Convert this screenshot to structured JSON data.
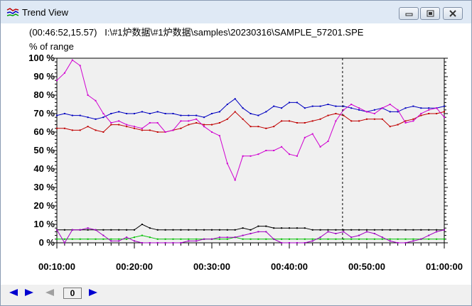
{
  "window": {
    "title": "Trend View",
    "title_icon": "trend-chart-icon",
    "controls": [
      "minimize-icon",
      "restore-icon",
      "close-icon"
    ]
  },
  "info_line": "(00:46:52,15.57)   I:\\#1炉数据\\#1炉数据\\samples\\20230316\\SAMPLE_57201.SPE",
  "chart_data": {
    "type": "line",
    "ylabel": "% of range",
    "ylim": [
      0,
      100
    ],
    "y_ticks": [
      "100 %",
      "90 %",
      "80 %",
      "70 %",
      "60 %",
      "50 %",
      "40 %",
      "30 %",
      "20 %",
      "10 %",
      "0 %"
    ],
    "x_ticks": [
      "00:10:00",
      "00:20:00",
      "00:30:00",
      "00:40:00",
      "00:50:00",
      "01:00:00"
    ],
    "x_minutes_range": [
      10,
      60
    ],
    "cursor_minute": 46.87,
    "grid": false,
    "background": "#f0f0f0",
    "series": [
      {
        "color": "#0000c0",
        "x": [
          10,
          11,
          12,
          13,
          14,
          15,
          16,
          17,
          18,
          19,
          20,
          21,
          22,
          23,
          24,
          25,
          26,
          27,
          28,
          29,
          30,
          31,
          32,
          33,
          34,
          35,
          36,
          37,
          38,
          39,
          40,
          41,
          42,
          43,
          44,
          45,
          46,
          47,
          48,
          49,
          50,
          51,
          52,
          53,
          54,
          55,
          56,
          57,
          58,
          59,
          60
        ],
        "y": [
          69,
          70,
          69,
          69,
          68,
          67,
          68,
          70,
          71,
          70,
          70,
          71,
          70,
          71,
          70,
          70,
          69,
          69,
          69,
          68,
          70,
          71,
          75,
          78,
          73,
          70,
          69,
          71,
          74,
          73,
          76,
          76,
          73,
          74,
          74,
          75,
          74,
          74,
          73,
          72,
          71,
          72,
          73,
          71,
          71,
          73,
          74,
          73,
          73,
          73,
          74
        ]
      },
      {
        "color": "#c00000",
        "x": [
          10,
          11,
          12,
          13,
          14,
          15,
          16,
          17,
          18,
          19,
          20,
          21,
          22,
          23,
          24,
          25,
          26,
          27,
          28,
          29,
          30,
          31,
          32,
          33,
          34,
          35,
          36,
          37,
          38,
          39,
          40,
          41,
          42,
          43,
          44,
          45,
          46,
          47,
          48,
          49,
          50,
          51,
          52,
          53,
          54,
          55,
          56,
          57,
          58,
          59,
          60
        ],
        "y": [
          62,
          62,
          61,
          61,
          63,
          61,
          60,
          64,
          64,
          63,
          62,
          61,
          61,
          60,
          60,
          61,
          62,
          64,
          65,
          64,
          64,
          65,
          67,
          71,
          67,
          63,
          63,
          62,
          63,
          66,
          66,
          65,
          65,
          66,
          67,
          69,
          70,
          69,
          66,
          66,
          67,
          67,
          67,
          63,
          64,
          66,
          67,
          69,
          70,
          70,
          71
        ]
      },
      {
        "color": "#d000d0",
        "x": [
          10,
          11,
          12,
          13,
          14,
          15,
          16,
          17,
          18,
          19,
          20,
          21,
          22,
          23,
          24,
          25,
          26,
          27,
          28,
          29,
          30,
          31,
          32,
          33,
          34,
          35,
          36,
          37,
          38,
          39,
          40,
          41,
          42,
          43,
          44,
          45,
          46,
          47,
          48,
          49,
          50,
          51,
          52,
          53,
          54,
          55,
          56,
          57,
          58,
          59,
          60
        ],
        "y": [
          88,
          92,
          99,
          96,
          80,
          77,
          70,
          65,
          66,
          64,
          63,
          62,
          65,
          65,
          60,
          61,
          66,
          66,
          67,
          63,
          60,
          58,
          43,
          34,
          47,
          47,
          48,
          50,
          50,
          52,
          48,
          47,
          57,
          59,
          52,
          55,
          66,
          72,
          75,
          73,
          71,
          70,
          73,
          75,
          72,
          65,
          66,
          70,
          72,
          73,
          68
        ]
      },
      {
        "color": "#000000",
        "x": [
          10,
          11,
          12,
          13,
          14,
          15,
          16,
          17,
          18,
          19,
          20,
          21,
          22,
          23,
          24,
          25,
          26,
          27,
          28,
          29,
          30,
          31,
          32,
          33,
          34,
          35,
          36,
          37,
          38,
          39,
          40,
          41,
          42,
          43,
          44,
          45,
          46,
          47,
          48,
          49,
          50,
          51,
          52,
          53,
          54,
          55,
          56,
          57,
          58,
          59,
          60
        ],
        "y": [
          7,
          7,
          7,
          7,
          7,
          7,
          7,
          7,
          7,
          7,
          7,
          10,
          8,
          7,
          7,
          7,
          7,
          7,
          7,
          7,
          7,
          7,
          7,
          7,
          8,
          7,
          9,
          9,
          8,
          8,
          8,
          8,
          8,
          7,
          7,
          7,
          7,
          7,
          7,
          7,
          7,
          7,
          7,
          7,
          7,
          7,
          7,
          7,
          7,
          7,
          7
        ]
      },
      {
        "color": "#00c000",
        "x": [
          10,
          11,
          12,
          13,
          14,
          15,
          16,
          17,
          18,
          19,
          20,
          21,
          22,
          23,
          24,
          25,
          26,
          27,
          28,
          29,
          30,
          31,
          32,
          33,
          34,
          35,
          36,
          37,
          38,
          39,
          40,
          41,
          42,
          43,
          44,
          45,
          46,
          47,
          48,
          49,
          50,
          51,
          52,
          53,
          54,
          55,
          56,
          57,
          58,
          59,
          60
        ],
        "y": [
          2,
          2,
          2,
          2,
          2,
          2,
          2,
          2,
          2,
          2,
          3,
          4,
          3,
          2,
          2,
          2,
          2,
          2,
          2,
          2,
          2,
          2,
          2,
          3,
          2,
          2,
          2,
          2,
          2,
          2,
          2,
          2,
          2,
          2,
          2,
          2,
          2,
          2,
          2,
          2,
          2,
          2,
          2,
          2,
          2,
          2,
          2,
          2,
          2,
          2,
          2
        ]
      },
      {
        "color": "#a000c0",
        "x": [
          10,
          11,
          12,
          13,
          14,
          15,
          16,
          17,
          18,
          19,
          20,
          21,
          22,
          23,
          24,
          25,
          26,
          27,
          28,
          29,
          30,
          31,
          32,
          33,
          34,
          35,
          36,
          37,
          38,
          39,
          40,
          41,
          42,
          43,
          44,
          45,
          46,
          47,
          48,
          49,
          50,
          51,
          52,
          53,
          54,
          55,
          56,
          57,
          58,
          59,
          60
        ],
        "y": [
          7,
          0,
          7,
          7,
          8,
          7,
          4,
          1,
          1,
          3,
          1,
          0,
          0,
          0,
          0,
          0,
          0,
          1,
          1,
          2,
          2,
          3,
          3,
          3,
          4,
          5,
          6,
          6,
          2,
          0,
          0,
          0,
          0,
          1,
          3,
          6,
          5,
          6,
          3,
          4,
          6,
          5,
          3,
          1,
          0,
          0,
          1,
          2,
          4,
          6,
          7
        ]
      }
    ]
  },
  "bottom": {
    "nav_first_icon": "arrow-left-icon",
    "nav_prev_icon": "arrow-right-icon",
    "nav_disabled_icon": "arrow-left-disabled-icon",
    "counter": "0",
    "nav_next_icon": "arrow-right-icon"
  }
}
